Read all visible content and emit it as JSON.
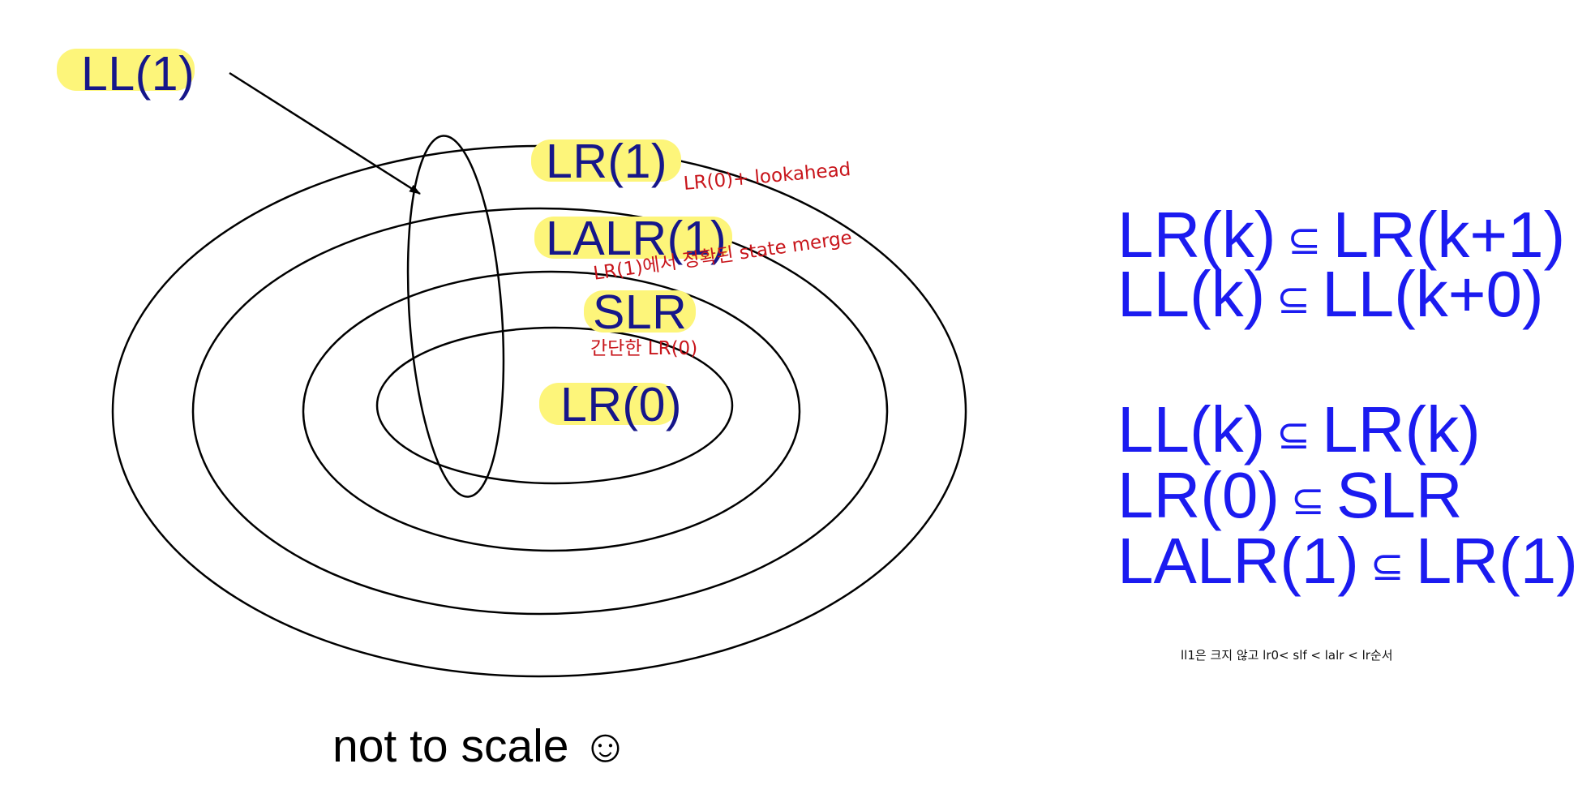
{
  "labels": {
    "ll1": "LL(1)",
    "lr1": "LR(1)",
    "lalr1": "LALR(1)",
    "slr": "SLR",
    "lr0": "LR(0)"
  },
  "notes": {
    "lr1_note": "LR(0)+ lookahead",
    "lalr1_note": "LR(1)에서 정확된 state merge",
    "slr_note": "간단한 LR(0)"
  },
  "relations": [
    {
      "left": "LR(k)",
      "symbol": "⊆",
      "right": "LR(k+1)"
    },
    {
      "left": "LL(k)",
      "symbol": "⊆",
      "right": "LL(k+0)"
    },
    {
      "left": "LL(k)",
      "symbol": "⊆",
      "right": "LR(k)"
    },
    {
      "left": "LR(0)",
      "symbol": "⊆",
      "right": "SLR"
    },
    {
      "left": "LALR(1)",
      "symbol": "⊆",
      "right": "LR(1)"
    }
  ],
  "footnote": "ll1은 크지 않고 lr0< slf < lalr < lr순서",
  "caption": "not to scale ☺",
  "colors": {
    "highlight": "#fdf57a",
    "label_text": "#16168a",
    "relation_text": "#1b1bf0",
    "note_text": "#c8151b"
  }
}
